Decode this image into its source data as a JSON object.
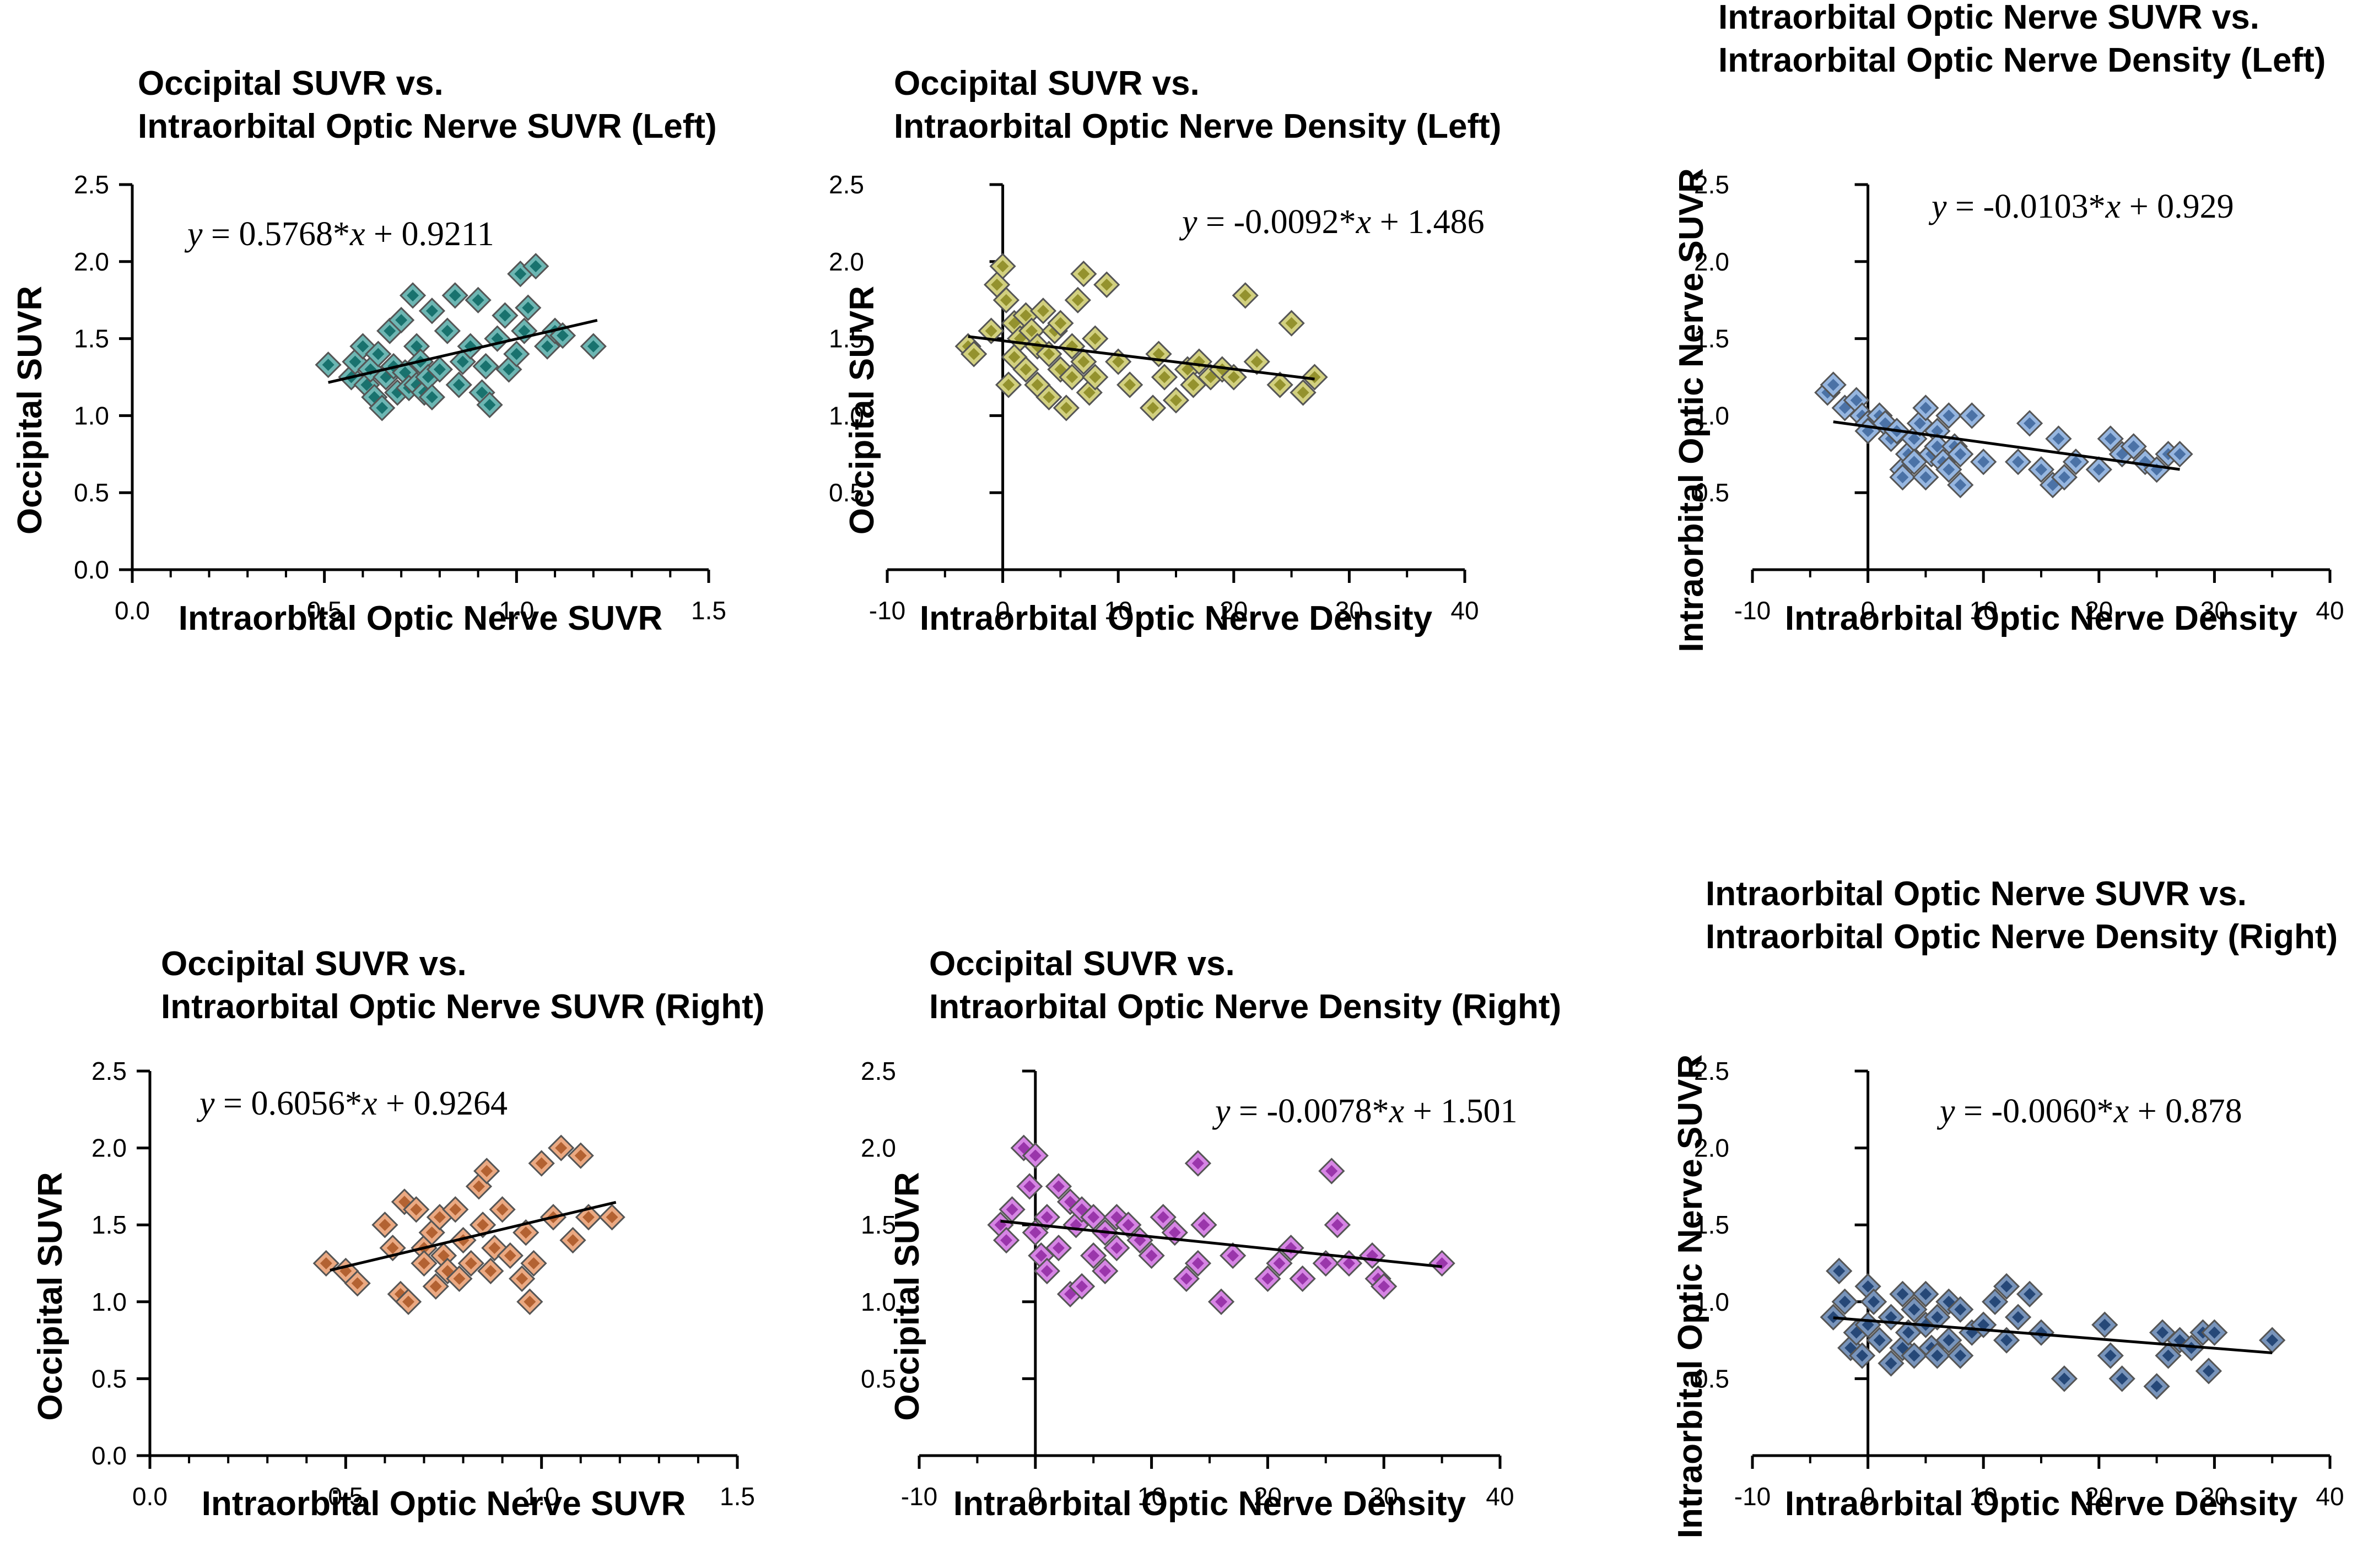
{
  "chart_data": [
    {
      "type": "scatter",
      "title": [
        "Occipital SUVR  vs.",
        "Intraorbital Optic Nerve SUVR (Left)"
      ],
      "xlabel": "Intraorbital Optic Nerve SUVR",
      "ylabel": "Occipital SUVR",
      "xlim": [
        0,
        1.5
      ],
      "ylim": [
        0,
        2.5
      ],
      "xticks": [
        "0.0",
        "0.5",
        "1.0",
        "1.5"
      ],
      "yticks": [
        "0.0",
        "0.5",
        "1.0",
        "1.5",
        "2.0",
        "2.5"
      ],
      "equation": {
        "y": "y",
        "rest": " = 0.5768*",
        "x": "x",
        "tail": " + 0.9211"
      },
      "fit": {
        "slope": 0.5768,
        "intercept": 0.9211,
        "x_range": [
          0.51,
          1.21
        ]
      },
      "color": "#1f8f8a",
      "points": {
        "x": [
          0.51,
          0.57,
          0.58,
          0.6,
          0.61,
          0.62,
          0.63,
          0.64,
          0.65,
          0.66,
          0.67,
          0.68,
          0.69,
          0.7,
          0.71,
          0.72,
          0.73,
          0.74,
          0.74,
          0.75,
          0.76,
          0.77,
          0.78,
          0.78,
          0.8,
          0.82,
          0.84,
          0.85,
          0.86,
          0.88,
          0.9,
          0.91,
          0.92,
          0.93,
          0.95,
          0.97,
          0.98,
          1.0,
          1.01,
          1.02,
          1.03,
          1.05,
          1.08,
          1.1,
          1.12,
          1.2
        ],
        "y": [
          1.33,
          1.25,
          1.35,
          1.45,
          1.2,
          1.3,
          1.12,
          1.4,
          1.05,
          1.25,
          1.55,
          1.32,
          1.15,
          1.62,
          1.28,
          1.18,
          1.78,
          1.45,
          1.2,
          1.35,
          1.15,
          1.25,
          1.68,
          1.12,
          1.3,
          1.55,
          1.78,
          1.2,
          1.35,
          1.45,
          1.75,
          1.15,
          1.32,
          1.07,
          1.5,
          1.65,
          1.3,
          1.4,
          1.92,
          1.55,
          1.7,
          1.97,
          1.45,
          1.55,
          1.52,
          1.45
        ]
      }
    },
    {
      "type": "scatter",
      "title": [
        "Occipital SUVR vs.",
        "Intraorbital Optic Nerve Density (Left)"
      ],
      "xlabel": "Intraorbital Optic Nerve Density",
      "ylabel": "Occipital SUVR",
      "xlim": [
        -10,
        40
      ],
      "ylim": [
        0,
        2.5
      ],
      "xticks": [
        "-10",
        "0",
        "10",
        "20",
        "30",
        "40"
      ],
      "yticks": [
        "0.5",
        "1.0",
        "1.5",
        "2.0",
        "2.5"
      ],
      "equation": {
        "y": "y",
        "rest": " = -0.0092*",
        "x": "x",
        "tail": " + 1.486"
      },
      "fit": {
        "slope": -0.0092,
        "intercept": 1.486,
        "x_range": [
          -3,
          27
        ]
      },
      "color": "#b9b63a",
      "points": {
        "x": [
          -3,
          -2.5,
          -1,
          -0.5,
          0,
          0.3,
          0.5,
          1,
          1,
          1.5,
          2,
          2,
          2.5,
          3,
          3,
          3.5,
          4,
          4,
          4.5,
          5,
          5,
          5.5,
          6,
          6,
          6.5,
          7,
          7,
          7.5,
          8,
          8,
          9,
          10,
          11,
          13,
          13.5,
          14,
          15,
          16,
          16.5,
          17,
          18,
          19,
          20,
          21,
          22,
          24,
          25,
          26,
          27
        ],
        "y": [
          1.45,
          1.4,
          1.55,
          1.85,
          1.97,
          1.75,
          1.2,
          1.6,
          1.38,
          1.5,
          1.65,
          1.3,
          1.55,
          1.45,
          1.2,
          1.68,
          1.4,
          1.12,
          1.55,
          1.3,
          1.6,
          1.05,
          1.45,
          1.25,
          1.75,
          1.35,
          1.92,
          1.15,
          1.5,
          1.25,
          1.85,
          1.35,
          1.2,
          1.05,
          1.4,
          1.25,
          1.1,
          1.3,
          1.2,
          1.35,
          1.25,
          1.3,
          1.25,
          1.78,
          1.35,
          1.2,
          1.6,
          1.15,
          1.25
        ]
      }
    },
    {
      "type": "scatter",
      "title": [
        "Intraorbital Optic Nerve SUVR vs.",
        "Intraorbital Optic Nerve Density (Left)"
      ],
      "xlabel": "Intraorbital Optic Nerve Density",
      "ylabel": "Intraorbital Optic Nerve SUVR",
      "xlim": [
        -10,
        40
      ],
      "ylim": [
        0,
        2.5
      ],
      "xticks": [
        "-10",
        "0",
        "10",
        "20",
        "30",
        "40"
      ],
      "yticks": [
        "0.5",
        "1.0",
        "1.5",
        "2.0",
        "2.5"
      ],
      "equation": {
        "y": "y",
        "rest": " = -0.0103*",
        "x": "x",
        "tail": " + 0.929"
      },
      "fit": {
        "slope": -0.0103,
        "intercept": 0.929,
        "x_range": [
          -3,
          27
        ]
      },
      "color": "#5e8fd0",
      "points": {
        "x": [
          -3.5,
          -3,
          -2,
          -1,
          -0.5,
          0,
          0,
          1,
          1.5,
          2,
          2.5,
          3,
          3,
          3.5,
          4,
          4,
          4.5,
          5,
          5,
          5.5,
          6,
          6,
          6.5,
          7,
          7,
          7.5,
          8,
          8,
          9,
          10,
          13,
          14,
          15,
          16,
          16.5,
          17,
          18,
          20,
          21,
          22,
          23,
          24,
          25,
          26,
          27
        ],
        "y": [
          1.15,
          1.2,
          1.05,
          1.1,
          1.0,
          0.95,
          0.9,
          1.0,
          0.95,
          0.85,
          0.9,
          0.65,
          0.6,
          0.75,
          0.85,
          0.7,
          0.95,
          1.05,
          0.6,
          0.75,
          0.9,
          0.8,
          0.7,
          1.0,
          0.65,
          0.8,
          0.55,
          0.75,
          1.0,
          0.7,
          0.7,
          0.95,
          0.65,
          0.55,
          0.85,
          0.6,
          0.7,
          0.65,
          0.85,
          0.75,
          0.8,
          0.7,
          0.65,
          0.75,
          0.75
        ]
      }
    },
    {
      "type": "scatter",
      "title": [
        "Occipital SUVR  vs.",
        "Intraorbital Optic Nerve SUVR (Right)"
      ],
      "xlabel": "Intraorbital Optic Nerve SUVR",
      "ylabel": "Occipital SUVR",
      "xlim": [
        0,
        1.5
      ],
      "ylim": [
        0,
        2.5
      ],
      "xticks": [
        "0.0",
        "0.5",
        "1.0",
        "1.5"
      ],
      "yticks": [
        "0.0",
        "0.5",
        "1.0",
        "1.5",
        "2.0",
        "2.5"
      ],
      "equation": {
        "y": "y",
        "rest": " = 0.6056*",
        "x": "x",
        "tail": " + 0.9264"
      },
      "fit": {
        "slope": 0.6056,
        "intercept": 0.9264,
        "x_range": [
          0.46,
          1.19
        ]
      },
      "color": "#e07a3f",
      "points": {
        "x": [
          0.45,
          0.5,
          0.53,
          0.6,
          0.62,
          0.64,
          0.65,
          0.66,
          0.68,
          0.7,
          0.7,
          0.72,
          0.73,
          0.74,
          0.75,
          0.76,
          0.78,
          0.79,
          0.8,
          0.82,
          0.84,
          0.85,
          0.86,
          0.87,
          0.88,
          0.9,
          0.92,
          0.95,
          0.96,
          0.97,
          0.98,
          1.0,
          1.03,
          1.05,
          1.08,
          1.1,
          1.12,
          1.18
        ],
        "y": [
          1.25,
          1.2,
          1.12,
          1.5,
          1.35,
          1.05,
          1.65,
          1.0,
          1.6,
          1.35,
          1.25,
          1.45,
          1.1,
          1.55,
          1.3,
          1.2,
          1.6,
          1.15,
          1.4,
          1.25,
          1.75,
          1.5,
          1.85,
          1.2,
          1.35,
          1.6,
          1.3,
          1.15,
          1.45,
          1.0,
          1.25,
          1.9,
          1.55,
          2.0,
          1.4,
          1.95,
          1.55,
          1.55
        ]
      }
    },
    {
      "type": "scatter",
      "title": [
        "Occipital SUVR vs.",
        "Intraorbital Optic Nerve Density (Right)"
      ],
      "xlabel": "Intraorbital Optic Nerve Density",
      "ylabel": "Occipital SUVR",
      "xlim": [
        -10,
        40
      ],
      "ylim": [
        0,
        2.5
      ],
      "xticks": [
        "-10",
        "0",
        "10",
        "20",
        "30",
        "40"
      ],
      "yticks": [
        "0.5",
        "1.0",
        "1.5",
        "2.0",
        "2.5"
      ],
      "equation": {
        "y": "y",
        "rest": " = -0.0078*",
        "x": "x",
        "tail": " + 1.501"
      },
      "fit": {
        "slope": -0.0078,
        "intercept": 1.501,
        "x_range": [
          -3,
          35
        ]
      },
      "color": "#c043d6",
      "points": {
        "x": [
          -3,
          -2.5,
          -2,
          -1,
          -0.5,
          0,
          0,
          0.5,
          1,
          1,
          2,
          2,
          3,
          3,
          3.5,
          4,
          4,
          5,
          5,
          6,
          6,
          7,
          7,
          8,
          9,
          10,
          11,
          12,
          13,
          14,
          14,
          14.5,
          16,
          17,
          20,
          21,
          22,
          23,
          25,
          25.5,
          26,
          27,
          29,
          29.5,
          30,
          35
        ],
        "y": [
          1.5,
          1.4,
          1.6,
          2.0,
          1.75,
          1.45,
          1.95,
          1.3,
          1.55,
          1.2,
          1.75,
          1.35,
          1.05,
          1.65,
          1.5,
          1.1,
          1.6,
          1.3,
          1.55,
          1.45,
          1.2,
          1.55,
          1.35,
          1.5,
          1.4,
          1.3,
          1.55,
          1.45,
          1.15,
          1.9,
          1.25,
          1.5,
          1.0,
          1.3,
          1.15,
          1.25,
          1.35,
          1.15,
          1.25,
          1.85,
          1.5,
          1.25,
          1.3,
          1.15,
          1.1,
          1.25
        ]
      }
    },
    {
      "type": "scatter",
      "title": [
        "Intraorbital Optic Nerve SUVR vs.",
        "Intraorbital Optic Nerve Density (Right)"
      ],
      "xlabel": "Intraorbital Optic Nerve Density",
      "ylabel": "Intraorbital Optic Nerve SUVR",
      "xlim": [
        -10,
        40
      ],
      "ylim": [
        0,
        2.5
      ],
      "xticks": [
        "-10",
        "0",
        "10",
        "20",
        "30",
        "40"
      ],
      "yticks": [
        "0.5",
        "1.0",
        "1.5",
        "2.0",
        "2.5"
      ],
      "equation": {
        "y": "y",
        "rest": " = -0.0060*",
        "x": "x",
        "tail": " + 0.878"
      },
      "fit": {
        "slope": -0.006,
        "intercept": 0.878,
        "x_range": [
          -3,
          35
        ]
      },
      "color": "#2f5a96",
      "points": {
        "x": [
          -3,
          -2.5,
          -2,
          -1.5,
          -1,
          -0.5,
          0,
          0,
          0.5,
          1,
          2,
          2,
          3,
          3,
          3.5,
          4,
          4,
          5,
          5,
          5.5,
          6,
          6,
          7,
          7,
          8,
          8,
          9,
          10,
          11,
          12,
          12,
          13,
          14,
          15,
          17,
          20.5,
          21,
          22,
          25,
          25.5,
          26,
          27,
          28,
          29,
          29.5,
          30,
          35
        ],
        "y": [
          0.9,
          1.2,
          1.0,
          0.7,
          0.8,
          0.65,
          1.1,
          0.85,
          1.0,
          0.75,
          0.9,
          0.6,
          0.7,
          1.05,
          0.8,
          0.65,
          0.95,
          0.85,
          1.05,
          0.7,
          0.9,
          0.65,
          1.0,
          0.75,
          0.95,
          0.65,
          0.8,
          0.85,
          1.0,
          0.75,
          1.1,
          0.9,
          1.05,
          0.8,
          0.5,
          0.85,
          0.65,
          0.5,
          0.45,
          0.8,
          0.65,
          0.75,
          0.7,
          0.8,
          0.55,
          0.8,
          0.75
        ]
      }
    }
  ]
}
